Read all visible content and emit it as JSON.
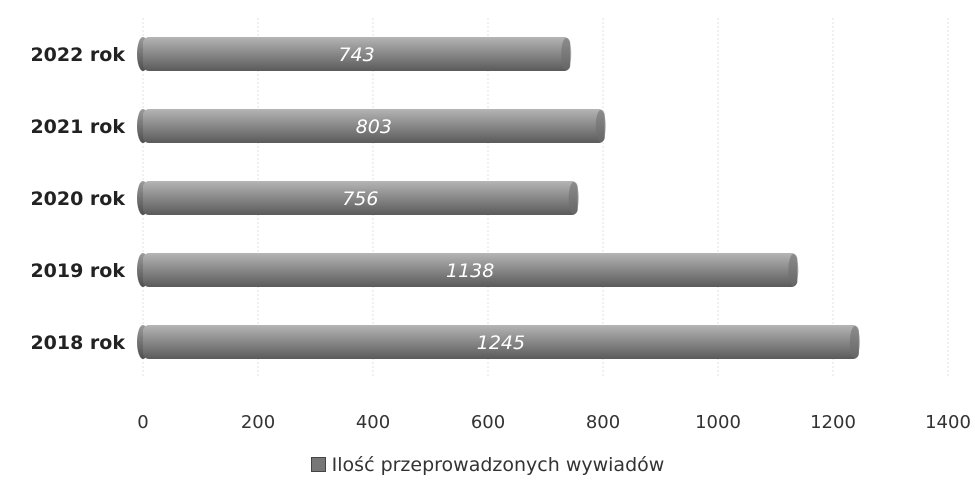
{
  "chart_data": {
    "type": "bar",
    "orientation": "horizontal",
    "categories": [
      "2022 rok",
      "2021 rok",
      "2020 rok",
      "2019 rok",
      "2018 rok"
    ],
    "series": [
      {
        "name": "Ilość przeprowadzonych wywiadów",
        "values": [
          743,
          803,
          756,
          1138,
          1245
        ]
      }
    ],
    "data_labels": [
      "743",
      "803",
      "756",
      "1138",
      "1245"
    ],
    "xlim": [
      0,
      1400
    ],
    "x_ticks": [
      "0",
      "200",
      "400",
      "600",
      "800",
      "1000",
      "1200",
      "1400"
    ],
    "grid": "vertical",
    "legend_position": "bottom",
    "colors": {
      "bar": "#8a8a8a",
      "bar_dark": "#5e5e5e",
      "bar_light": "#b8b8b8"
    }
  }
}
